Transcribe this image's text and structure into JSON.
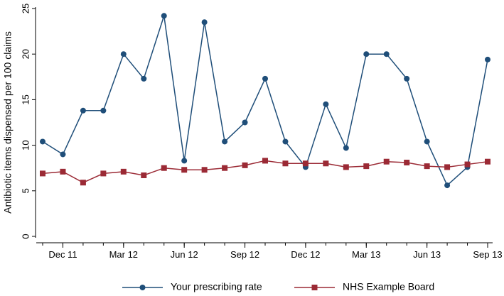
{
  "chart_data": {
    "type": "line",
    "ylabel": "Antibiotic items dispensed per 100 claims",
    "xlabel": "",
    "ylim": [
      0,
      25
    ],
    "yticks": [
      0,
      5,
      10,
      15,
      20,
      25
    ],
    "x_tick_labels": [
      "Dec 11",
      "Mar 12",
      "Jun 12",
      "Sep 12",
      "Dec 12",
      "Mar 13",
      "Jun 13",
      "Sep 13"
    ],
    "x_tick_indices": [
      1,
      4,
      7,
      10,
      13,
      16,
      19,
      22
    ],
    "periods": 23,
    "series": [
      {
        "name": "Your prescribing rate",
        "marker": "circle",
        "color": "#1f4e79",
        "values": [
          10.4,
          9.0,
          13.8,
          13.8,
          20.0,
          17.3,
          24.2,
          8.3,
          23.5,
          10.4,
          12.5,
          17.3,
          10.4,
          7.6,
          14.5,
          9.7,
          20.0,
          20.0,
          17.3,
          10.4,
          5.6,
          7.6,
          19.4
        ]
      },
      {
        "name": "NHS Example Board",
        "marker": "square",
        "color": "#9b2a35",
        "values": [
          6.9,
          7.1,
          5.9,
          6.9,
          7.1,
          6.7,
          7.5,
          7.3,
          7.3,
          7.5,
          7.8,
          8.3,
          8.0,
          8.0,
          8.0,
          7.6,
          7.7,
          8.2,
          8.1,
          7.7,
          7.6,
          7.9,
          8.2
        ]
      }
    ],
    "grid": false,
    "legend_position": "bottom"
  }
}
